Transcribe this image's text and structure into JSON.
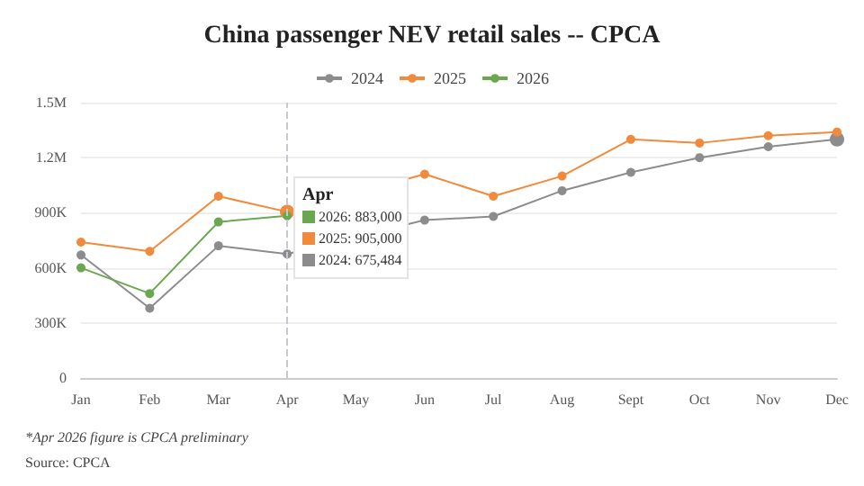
{
  "chart_data": {
    "type": "line",
    "title": "China passenger NEV retail sales -- CPCA",
    "categories": [
      "Jan",
      "Feb",
      "Mar",
      "Apr",
      "May",
      "Jun",
      "Jul",
      "Aug",
      "Sept",
      "Oct",
      "Nov",
      "Dec"
    ],
    "series": [
      {
        "name": "2024",
        "color": "#8c8c8c",
        "values": [
          670000,
          380000,
          720000,
          675484,
          null,
          860000,
          880000,
          1020000,
          1120000,
          1200000,
          1260000,
          1300000
        ]
      },
      {
        "name": "2025",
        "color": "#f08a3c",
        "values": [
          740000,
          690000,
          990000,
          905000,
          null,
          1110000,
          990000,
          1100000,
          1300000,
          1280000,
          1320000,
          1340000
        ]
      },
      {
        "name": "2026",
        "color": "#6aa84f",
        "values": [
          600000,
          460000,
          850000,
          883000,
          null,
          null,
          null,
          null,
          null,
          null,
          null,
          null
        ]
      }
    ],
    "ylim": [
      0,
      1500000
    ],
    "yticks": [
      0,
      {
        "value": 300000,
        "label": "300K"
      },
      {
        "value": 600000,
        "label": "600K"
      },
      {
        "value": 900000,
        "label": "900K"
      },
      {
        "value": 1200000,
        "label": "1.2M"
      },
      {
        "value": 1500000,
        "label": "1.5M"
      }
    ],
    "grid": "y",
    "legend": "top",
    "marker": "circle",
    "line_style": "solid",
    "ref_lines": [
      {
        "axis": "x",
        "value": "Apr",
        "line_style": "dashed",
        "color": "#c8c8d0"
      }
    ],
    "annotations": [
      "Apr",
      "2026: 883,000",
      "2025: 905,000",
      "2024: 675,484",
      "*Apr 2026 figure is CPCA preliminary",
      "Source: CPCA"
    ]
  }
}
